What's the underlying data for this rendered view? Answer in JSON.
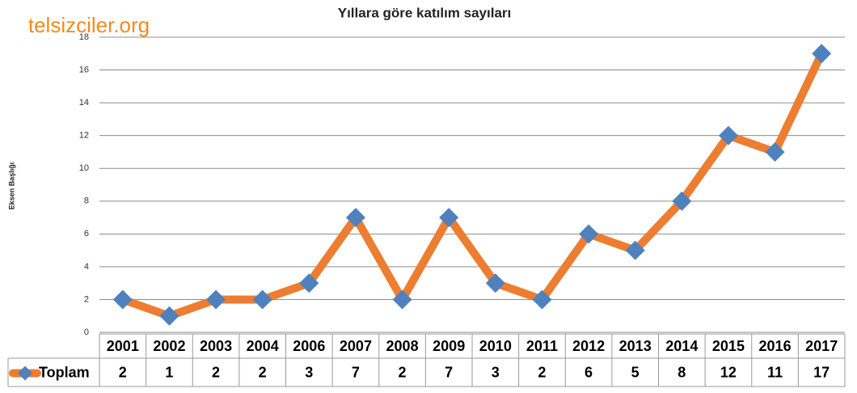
{
  "watermark": "telsizciler.org",
  "chart_data": {
    "type": "line",
    "title": "Yıllara göre katılım sayıları",
    "y_label": "Eksen Başlığı",
    "categories": [
      "2001",
      "2002",
      "2003",
      "2004",
      "2006",
      "2007",
      "2008",
      "2009",
      "2010",
      "2011",
      "2012",
      "2013",
      "2014",
      "2015",
      "2016",
      "2017"
    ],
    "series": [
      {
        "name": "Toplam",
        "color": "#ed7d31",
        "marker_color": "#4f81bd",
        "values": [
          2,
          1,
          2,
          2,
          3,
          7,
          2,
          7,
          3,
          2,
          6,
          5,
          8,
          12,
          11,
          17
        ]
      }
    ],
    "ylim": [
      0,
      18
    ],
    "yticks": [
      0,
      2,
      4,
      6,
      8,
      10,
      12,
      14,
      16,
      18
    ],
    "grid": true,
    "data_table": true
  }
}
